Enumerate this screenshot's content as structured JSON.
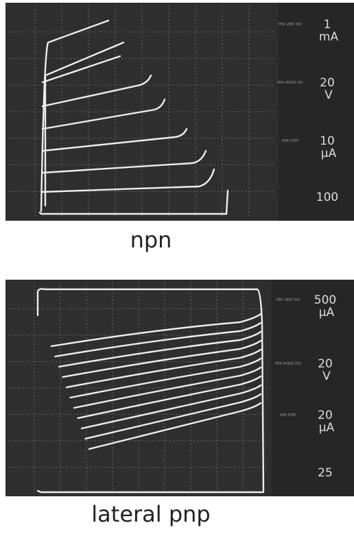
{
  "panels": [
    {
      "caption": "npn",
      "readouts": [
        {
          "label": "PER VERT DIV",
          "value": "1",
          "unit": "mA"
        },
        {
          "label": "PER HORIZ DIV",
          "value": "20",
          "unit": "V"
        },
        {
          "label": "PER STEP",
          "value": "10",
          "unit": "µA"
        },
        {
          "value": "100"
        }
      ]
    },
    {
      "caption": "lateral pnp",
      "readouts": [
        {
          "label": "PER VERT DIV",
          "value": "500",
          "unit": "µA"
        },
        {
          "label": "PER HORIZ DIV",
          "value": "20",
          "unit": "V"
        },
        {
          "label": "PER STEP",
          "value": "20",
          "unit": "µA"
        },
        {
          "value": "25"
        }
      ]
    }
  ]
}
